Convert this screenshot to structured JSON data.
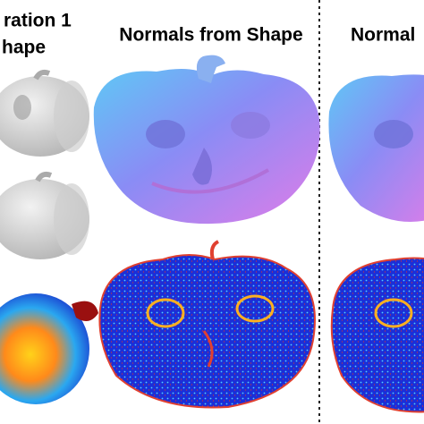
{
  "header": {
    "left_title_line1": "ration 1",
    "left_title_line2": "hape",
    "middle_title": "Normals from Shape",
    "right_title": "Normal"
  }
}
